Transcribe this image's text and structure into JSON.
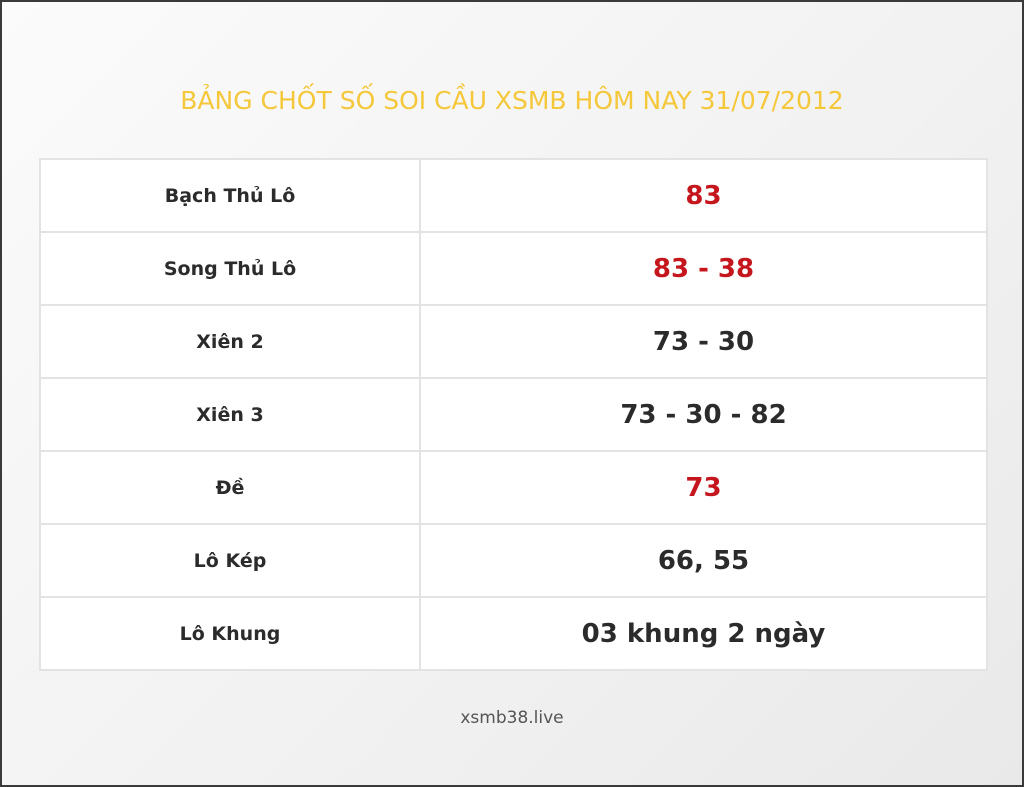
{
  "title": "BẢNG CHỐT SỐ SOI CẦU XSMB HÔM NAY 31/07/2012",
  "rows": [
    {
      "label": "Bạch Thủ Lô",
      "value": "83",
      "highlight": true
    },
    {
      "label": "Song Thủ Lô",
      "value": "83 - 38",
      "highlight": true
    },
    {
      "label": "Xiên 2",
      "value": "73 - 30",
      "highlight": false
    },
    {
      "label": "Xiên 3",
      "value": "73 - 30 - 82",
      "highlight": false
    },
    {
      "label": "Đề",
      "value": "73",
      "highlight": true
    },
    {
      "label": "Lô Kép",
      "value": "66, 55",
      "highlight": false
    },
    {
      "label": "Lô Khung",
      "value": "03 khung 2 ngày",
      "highlight": false
    }
  ],
  "footer": "xsmb38.live",
  "colors": {
    "title": "#f5c73a",
    "highlight": "#c4161c",
    "text": "#2b2b2b"
  }
}
